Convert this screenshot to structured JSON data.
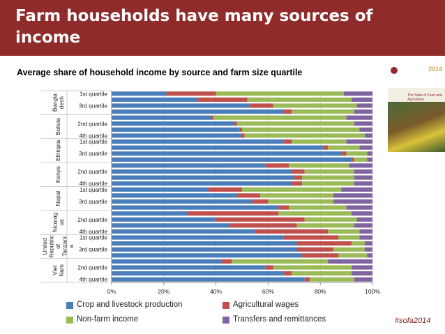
{
  "slide": {
    "title": "Farm households have many sources of income",
    "subtitle": "Average share of household income by source and farm size quartile",
    "hashtag": "#sofa2014",
    "cover_year": "2014",
    "cover_title": "The State of Food and Agriculture"
  },
  "colors": {
    "header": "#8f2b2b",
    "crop": "#4a7ebb",
    "wages": "#c0504d",
    "nonfarm": "#9bbb59",
    "transfers": "#8064a2"
  },
  "chart_data": {
    "type": "bar",
    "orientation": "horizontal-stacked-100",
    "xlim": [
      0,
      100
    ],
    "xticks": [
      "0%",
      "20%",
      "40%",
      "60%",
      "80%",
      "100%"
    ],
    "series_names": [
      "Crop and livestock production",
      "Agricultural wages",
      "Non-farm income",
      "Transfers and remittances"
    ],
    "legend_position": "bottom",
    "grid": true,
    "groups": [
      {
        "country": "Bangladesh",
        "label_lines": [
          "Bangla",
          "desh"
        ],
        "rows": [
          {
            "label": "1st quartile",
            "values": [
              21,
              19,
              49,
              11
            ]
          },
          {
            "label": "",
            "values": [
              33,
              19,
              40,
              8
            ]
          },
          {
            "label": "3rd quartile",
            "values": [
              53,
              9,
              32,
              6
            ]
          },
          {
            "label": "",
            "values": [
              66,
              3,
              24,
              7
            ]
          }
        ]
      },
      {
        "country": "Bolivia",
        "label_lines": [
          "Bolivia"
        ],
        "rows": [
          {
            "label": "",
            "values": [
              38,
              1,
              51,
              10
            ]
          },
          {
            "label": "2nd quartile",
            "values": [
              47,
              1,
              45,
              7
            ]
          },
          {
            "label": "",
            "values": [
              49,
              1,
              45,
              5
            ]
          },
          {
            "label": "4th quartile",
            "values": [
              50,
              1,
              46,
              3
            ]
          }
        ]
      },
      {
        "country": "Ethiopia",
        "label_lines": [
          "Ethiopia"
        ],
        "rows": [
          {
            "label": "1st quartile",
            "values": [
              66,
              3,
              21,
              10
            ]
          },
          {
            "label": "",
            "values": [
              81,
              2,
              12,
              5
            ]
          },
          {
            "label": "3rd quartile",
            "values": [
              88,
              2,
              8,
              2
            ]
          },
          {
            "label": "",
            "values": [
              92,
              1,
              5,
              2
            ]
          }
        ]
      },
      {
        "country": "Kenya",
        "label_lines": [
          "Kenya"
        ],
        "rows": [
          {
            "label": "",
            "values": [
              59,
              9,
              23,
              9
            ]
          },
          {
            "label": "2nd quartile",
            "values": [
              69,
              5,
              19,
              7
            ]
          },
          {
            "label": "",
            "values": [
              70,
              3,
              20,
              7
            ]
          },
          {
            "label": "4th quartile",
            "values": [
              69,
              4,
              20,
              7
            ]
          }
        ]
      },
      {
        "country": "Nepal",
        "label_lines": [
          "Nepal"
        ],
        "rows": [
          {
            "label": "1st quartile",
            "values": [
              37,
              13,
              38,
              12
            ]
          },
          {
            "label": "",
            "values": [
              48,
              9,
              28,
              15
            ]
          },
          {
            "label": "3rd quartile",
            "values": [
              54,
              6,
              25,
              15
            ]
          },
          {
            "label": "",
            "values": [
              64,
              4,
              22,
              10
            ]
          }
        ]
      },
      {
        "country": "Nicaragua",
        "label_lines": [
          "Nicarag",
          "ua"
        ],
        "rows": [
          {
            "label": "",
            "values": [
              29,
              35,
              28,
              8
            ]
          },
          {
            "label": "2nd quartile",
            "values": [
              40,
              34,
              20,
              6
            ]
          },
          {
            "label": "",
            "values": [
              45,
              26,
              22,
              7
            ]
          },
          {
            "label": "4th quartile",
            "values": [
              55,
              28,
              12,
              5
            ]
          }
        ]
      },
      {
        "country": "United Republic of Tanzania",
        "label_lines": [
          "United",
          "Republic",
          "of",
          "Tanzani",
          "a"
        ],
        "rows": [
          {
            "label": "1st quartile",
            "values": [
              66,
              21,
              8,
              5
            ]
          },
          {
            "label": "",
            "values": [
              71,
              21,
              5,
              3
            ]
          },
          {
            "label": "3rd quartile",
            "values": [
              71,
              14,
              12,
              3
            ]
          },
          {
            "label": "",
            "values": [
              73,
              14,
              11,
              2
            ]
          }
        ]
      },
      {
        "country": "Viet Nam",
        "label_lines": [
          "Viet",
          "Nam"
        ],
        "rows": [
          {
            "label": "",
            "values": [
              42,
              4,
              37,
              17
            ]
          },
          {
            "label": "2nd quartile",
            "values": [
              59,
              3,
              30,
              8
            ]
          },
          {
            "label": "",
            "values": [
              66,
              3,
              23,
              8
            ]
          },
          {
            "label": "4th quartile",
            "values": [
              74,
              2,
              17,
              7
            ]
          }
        ]
      }
    ]
  }
}
